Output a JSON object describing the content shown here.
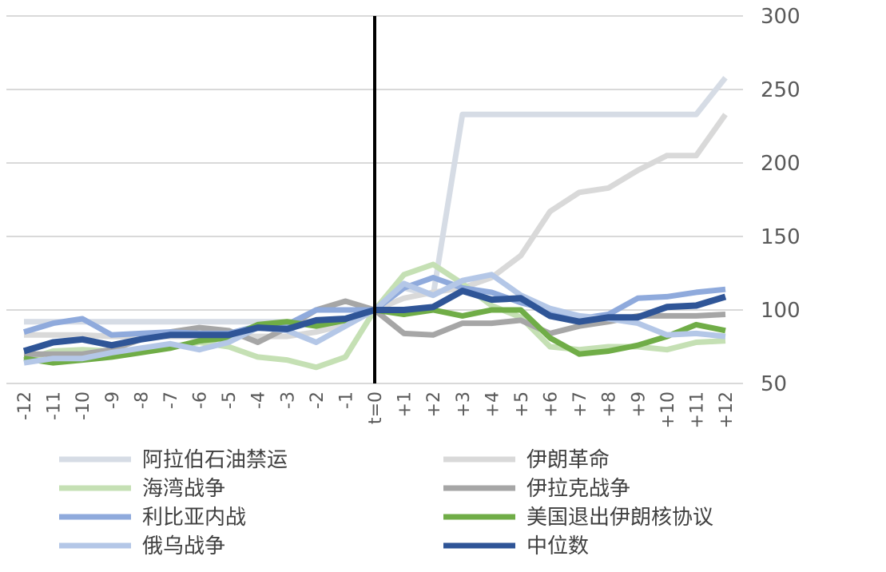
{
  "chart_data": {
    "type": "line",
    "title": "",
    "xlabel": "",
    "ylabel": "",
    "ylim": [
      50,
      300
    ],
    "yticks": [
      50,
      100,
      150,
      200,
      250,
      300
    ],
    "grid": true,
    "legend_position": "bottom",
    "categories": [
      "-12",
      "-11",
      "-10",
      "-9",
      "-8",
      "-7",
      "-6",
      "-5",
      "-4",
      "-3",
      "-2",
      "-1",
      "t=0",
      "+1",
      "+2",
      "+3",
      "+4",
      "+5",
      "+6",
      "+7",
      "+8",
      "+9",
      "+10",
      "+11",
      "+12"
    ],
    "event_marker": "t=0",
    "series": [
      {
        "name": "阿拉伯石油禁运",
        "color": "#D6DCE5",
        "values": [
          92,
          92,
          92,
          92,
          92,
          92,
          92,
          92,
          92,
          92,
          92,
          92,
          100,
          115,
          110,
          233,
          233,
          233,
          233,
          233,
          233,
          233,
          233,
          233,
          258
        ]
      },
      {
        "name": "伊朗革命",
        "color": "#D9D9D9",
        "values": [
          83,
          83,
          83,
          82,
          82,
          82,
          82,
          82,
          82,
          82,
          85,
          90,
          100,
          108,
          112,
          115,
          122,
          137,
          167,
          180,
          183,
          195,
          205,
          205,
          233
        ]
      },
      {
        "name": "海湾战争",
        "color": "#C5E0B4",
        "values": [
          66,
          72,
          73,
          72,
          72,
          75,
          78,
          75,
          68,
          66,
          61,
          68,
          100,
          124,
          131,
          118,
          103,
          95,
          75,
          73,
          75,
          75,
          73,
          78,
          79
        ]
      },
      {
        "name": "伊拉克战争",
        "color": "#A6A6A6",
        "values": [
          70,
          70,
          70,
          73,
          80,
          85,
          88,
          86,
          78,
          88,
          100,
          106,
          100,
          84,
          83,
          91,
          91,
          93,
          84,
          89,
          92,
          96,
          96,
          96,
          97
        ]
      },
      {
        "name": "利比亚内战",
        "color": "#8FAADC",
        "values": [
          85,
          91,
          94,
          83,
          84,
          85,
          84,
          84,
          89,
          90,
          100,
          100,
          100,
          115,
          122,
          115,
          112,
          105,
          100,
          94,
          97,
          108,
          109,
          112,
          114
        ]
      },
      {
        "name": "美国退出伊朗核协议",
        "color": "#70AD47",
        "values": [
          67,
          64,
          66,
          68,
          71,
          74,
          79,
          81,
          90,
          92,
          89,
          93,
          100,
          97,
          100,
          96,
          100,
          100,
          81,
          70,
          72,
          76,
          82,
          90,
          86
        ]
      },
      {
        "name": "俄乌战争",
        "color": "#B4C7E7",
        "values": [
          64,
          67,
          67,
          71,
          74,
          77,
          73,
          78,
          88,
          86,
          78,
          89,
          100,
          118,
          110,
          120,
          124,
          110,
          101,
          96,
          94,
          91,
          83,
          84,
          82
        ]
      },
      {
        "name": "中位数",
        "color": "#2F5597",
        "values": [
          72,
          78,
          80,
          76,
          80,
          83,
          83,
          83,
          88,
          87,
          93,
          94,
          100,
          100,
          102,
          113,
          107,
          108,
          96,
          92,
          95,
          95,
          102,
          103,
          109
        ]
      }
    ]
  }
}
